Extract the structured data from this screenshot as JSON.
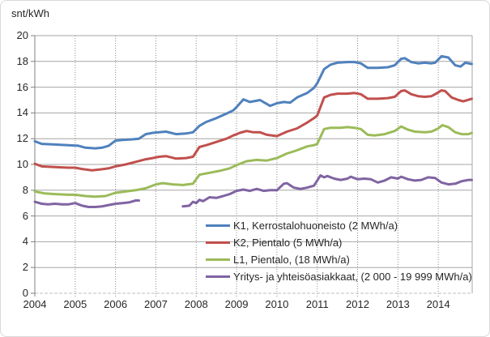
{
  "page": {
    "background": "#ffffff",
    "frame_border_color": "#d9d9d9"
  },
  "chart_data": {
    "type": "line",
    "title": "",
    "unit_label": "snt/kWh",
    "legend_position": "inside-bottom-right",
    "grid": "horizontal-solid, vertical-dotted",
    "colors": {
      "grid_h": "#a6a6a6",
      "grid_v": "#8c8c8c",
      "axis": "#808080",
      "zero_line": "#bfbfbf",
      "text": "#262626"
    },
    "x_axis": {
      "min": 2004,
      "max": 2014.84,
      "tick_years": [
        2004,
        2005,
        2006,
        2007,
        2008,
        2009,
        2010,
        2011,
        2012,
        2013,
        2014
      ],
      "tick_labels": [
        "2004",
        "2005",
        "2006",
        "2007",
        "2008",
        "2009",
        "2010",
        "2011",
        "2012",
        "2013",
        "2014"
      ]
    },
    "y_axis": {
      "min": 0,
      "max": 20,
      "tick_step": 2,
      "tick_labels": [
        "0",
        "2",
        "4",
        "6",
        "8",
        "10",
        "12",
        "14",
        "16",
        "18",
        "20"
      ]
    },
    "series": [
      {
        "id": "k1",
        "label": "K1, Kerrostalohuoneisto (2 MWh/a)",
        "color": "#4F81BD",
        "segments": [
          [
            [
              2004.0,
              11.8
            ],
            [
              2004.17,
              11.6
            ],
            [
              2004.5,
              11.55
            ],
            [
              2004.83,
              11.5
            ],
            [
              2005.08,
              11.45
            ],
            [
              2005.25,
              11.3
            ],
            [
              2005.5,
              11.25
            ],
            [
              2005.67,
              11.3
            ],
            [
              2005.83,
              11.45
            ],
            [
              2006.0,
              11.85
            ],
            [
              2006.17,
              11.9
            ],
            [
              2006.42,
              11.95
            ],
            [
              2006.58,
              12.0
            ],
            [
              2006.75,
              12.35
            ],
            [
              2006.92,
              12.45
            ],
            [
              2007.08,
              12.5
            ],
            [
              2007.25,
              12.55
            ],
            [
              2007.5,
              12.35
            ],
            [
              2007.75,
              12.4
            ],
            [
              2007.92,
              12.5
            ],
            [
              2008.08,
              13.0
            ],
            [
              2008.25,
              13.3
            ],
            [
              2008.5,
              13.6
            ],
            [
              2008.75,
              13.95
            ],
            [
              2008.92,
              14.2
            ],
            [
              2009.0,
              14.45
            ],
            [
              2009.17,
              15.05
            ],
            [
              2009.33,
              14.85
            ],
            [
              2009.58,
              15.0
            ],
            [
              2009.75,
              14.7
            ],
            [
              2009.83,
              14.55
            ],
            [
              2010.0,
              14.75
            ],
            [
              2010.17,
              14.85
            ],
            [
              2010.33,
              14.8
            ],
            [
              2010.5,
              15.2
            ],
            [
              2010.75,
              15.55
            ],
            [
              2010.92,
              15.95
            ],
            [
              2011.0,
              16.3
            ],
            [
              2011.17,
              17.4
            ],
            [
              2011.33,
              17.75
            ],
            [
              2011.5,
              17.9
            ],
            [
              2011.75,
              17.95
            ],
            [
              2011.92,
              17.95
            ],
            [
              2012.08,
              17.85
            ],
            [
              2012.25,
              17.5
            ],
            [
              2012.5,
              17.5
            ],
            [
              2012.75,
              17.55
            ],
            [
              2012.92,
              17.7
            ],
            [
              2013.08,
              18.2
            ],
            [
              2013.17,
              18.25
            ],
            [
              2013.33,
              17.95
            ],
            [
              2013.5,
              17.85
            ],
            [
              2013.67,
              17.9
            ],
            [
              2013.83,
              17.85
            ],
            [
              2013.92,
              17.9
            ],
            [
              2014.08,
              18.4
            ],
            [
              2014.25,
              18.3
            ],
            [
              2014.42,
              17.7
            ],
            [
              2014.55,
              17.6
            ],
            [
              2014.67,
              17.9
            ],
            [
              2014.83,
              17.8
            ]
          ]
        ]
      },
      {
        "id": "k2",
        "label": "K2, Pientalo (5 MWh/a)",
        "color": "#C0504D",
        "segments": [
          [
            [
              2004.0,
              10.05
            ],
            [
              2004.17,
              9.85
            ],
            [
              2004.5,
              9.8
            ],
            [
              2004.83,
              9.75
            ],
            [
              2005.0,
              9.75
            ],
            [
              2005.17,
              9.65
            ],
            [
              2005.42,
              9.55
            ],
            [
              2005.58,
              9.6
            ],
            [
              2005.83,
              9.7
            ],
            [
              2006.0,
              9.85
            ],
            [
              2006.25,
              10.0
            ],
            [
              2006.5,
              10.2
            ],
            [
              2006.75,
              10.4
            ],
            [
              2006.92,
              10.5
            ],
            [
              2007.08,
              10.6
            ],
            [
              2007.25,
              10.65
            ],
            [
              2007.5,
              10.45
            ],
            [
              2007.75,
              10.5
            ],
            [
              2007.92,
              10.6
            ],
            [
              2008.08,
              11.35
            ],
            [
              2008.25,
              11.5
            ],
            [
              2008.5,
              11.75
            ],
            [
              2008.75,
              12.0
            ],
            [
              2008.92,
              12.25
            ],
            [
              2009.08,
              12.45
            ],
            [
              2009.25,
              12.6
            ],
            [
              2009.42,
              12.5
            ],
            [
              2009.58,
              12.5
            ],
            [
              2009.75,
              12.3
            ],
            [
              2010.0,
              12.2
            ],
            [
              2010.25,
              12.55
            ],
            [
              2010.5,
              12.8
            ],
            [
              2010.75,
              13.25
            ],
            [
              2010.92,
              13.6
            ],
            [
              2011.0,
              13.8
            ],
            [
              2011.17,
              15.2
            ],
            [
              2011.33,
              15.4
            ],
            [
              2011.5,
              15.5
            ],
            [
              2011.75,
              15.5
            ],
            [
              2011.92,
              15.55
            ],
            [
              2012.08,
              15.45
            ],
            [
              2012.25,
              15.1
            ],
            [
              2012.5,
              15.1
            ],
            [
              2012.75,
              15.15
            ],
            [
              2012.92,
              15.25
            ],
            [
              2013.08,
              15.7
            ],
            [
              2013.17,
              15.75
            ],
            [
              2013.33,
              15.45
            ],
            [
              2013.5,
              15.3
            ],
            [
              2013.67,
              15.25
            ],
            [
              2013.83,
              15.3
            ],
            [
              2013.92,
              15.45
            ],
            [
              2014.08,
              15.75
            ],
            [
              2014.17,
              15.7
            ],
            [
              2014.33,
              15.2
            ],
            [
              2014.5,
              15.0
            ],
            [
              2014.62,
              14.9
            ],
            [
              2014.83,
              15.1
            ]
          ]
        ]
      },
      {
        "id": "l1",
        "label": "L1, Pientalo, (18 MWh/a)",
        "color": "#9BBB59",
        "segments": [
          [
            [
              2004.0,
              7.9
            ],
            [
              2004.25,
              7.75
            ],
            [
              2004.5,
              7.7
            ],
            [
              2004.83,
              7.65
            ],
            [
              2005.0,
              7.65
            ],
            [
              2005.25,
              7.55
            ],
            [
              2005.5,
              7.5
            ],
            [
              2005.75,
              7.55
            ],
            [
              2006.0,
              7.8
            ],
            [
              2006.25,
              7.9
            ],
            [
              2006.5,
              8.0
            ],
            [
              2006.75,
              8.15
            ],
            [
              2007.0,
              8.45
            ],
            [
              2007.17,
              8.55
            ],
            [
              2007.42,
              8.45
            ],
            [
              2007.67,
              8.4
            ],
            [
              2007.92,
              8.5
            ],
            [
              2008.08,
              9.2
            ],
            [
              2008.33,
              9.35
            ],
            [
              2008.58,
              9.5
            ],
            [
              2008.83,
              9.7
            ],
            [
              2009.0,
              9.95
            ],
            [
              2009.25,
              10.25
            ],
            [
              2009.5,
              10.35
            ],
            [
              2009.75,
              10.3
            ],
            [
              2010.0,
              10.5
            ],
            [
              2010.25,
              10.85
            ],
            [
              2010.5,
              11.1
            ],
            [
              2010.75,
              11.4
            ],
            [
              2010.92,
              11.5
            ],
            [
              2011.0,
              11.6
            ],
            [
              2011.17,
              12.75
            ],
            [
              2011.33,
              12.85
            ],
            [
              2011.58,
              12.85
            ],
            [
              2011.75,
              12.9
            ],
            [
              2011.92,
              12.85
            ],
            [
              2012.08,
              12.75
            ],
            [
              2012.25,
              12.3
            ],
            [
              2012.42,
              12.25
            ],
            [
              2012.67,
              12.35
            ],
            [
              2012.92,
              12.6
            ],
            [
              2013.08,
              12.95
            ],
            [
              2013.25,
              12.7
            ],
            [
              2013.42,
              12.55
            ],
            [
              2013.67,
              12.5
            ],
            [
              2013.83,
              12.55
            ],
            [
              2014.0,
              12.8
            ],
            [
              2014.1,
              13.05
            ],
            [
              2014.25,
              12.9
            ],
            [
              2014.42,
              12.5
            ],
            [
              2014.58,
              12.35
            ],
            [
              2014.75,
              12.35
            ],
            [
              2014.83,
              12.45
            ]
          ]
        ]
      },
      {
        "id": "yritys",
        "label": "Yritys- ja yhteisöasiakkaat, (2 000 - 19 999 MWh/a)",
        "color": "#8064A2",
        "segments": [
          [
            [
              2004.0,
              7.1
            ],
            [
              2004.17,
              6.95
            ],
            [
              2004.33,
              6.9
            ],
            [
              2004.5,
              6.95
            ],
            [
              2004.67,
              6.9
            ],
            [
              2004.83,
              6.9
            ],
            [
              2005.0,
              7.0
            ],
            [
              2005.17,
              6.8
            ],
            [
              2005.33,
              6.7
            ],
            [
              2005.5,
              6.7
            ],
            [
              2005.67,
              6.75
            ],
            [
              2005.83,
              6.85
            ],
            [
              2006.0,
              6.95
            ],
            [
              2006.17,
              7.0
            ],
            [
              2006.33,
              7.05
            ],
            [
              2006.5,
              7.2
            ],
            [
              2006.58,
              7.2
            ]
          ],
          [
            [
              2007.67,
              6.75
            ],
            [
              2007.83,
              6.8
            ],
            [
              2007.92,
              7.1
            ],
            [
              2008.0,
              7.0
            ],
            [
              2008.08,
              7.25
            ],
            [
              2008.17,
              7.15
            ],
            [
              2008.33,
              7.45
            ],
            [
              2008.5,
              7.4
            ],
            [
              2008.67,
              7.55
            ],
            [
              2008.83,
              7.7
            ],
            [
              2009.0,
              7.95
            ],
            [
              2009.17,
              8.05
            ],
            [
              2009.33,
              7.95
            ],
            [
              2009.5,
              8.1
            ],
            [
              2009.67,
              7.95
            ],
            [
              2009.83,
              8.0
            ],
            [
              2010.0,
              8.0
            ],
            [
              2010.17,
              8.5
            ],
            [
              2010.25,
              8.55
            ],
            [
              2010.42,
              8.2
            ],
            [
              2010.58,
              8.1
            ],
            [
              2010.75,
              8.2
            ],
            [
              2010.92,
              8.35
            ],
            [
              2011.08,
              9.15
            ],
            [
              2011.17,
              9.0
            ],
            [
              2011.25,
              9.1
            ],
            [
              2011.42,
              8.9
            ],
            [
              2011.58,
              8.8
            ],
            [
              2011.75,
              8.9
            ],
            [
              2011.83,
              9.05
            ],
            [
              2012.0,
              8.85
            ],
            [
              2012.17,
              8.9
            ],
            [
              2012.33,
              8.85
            ],
            [
              2012.5,
              8.6
            ],
            [
              2012.67,
              8.75
            ],
            [
              2012.83,
              9.0
            ],
            [
              2013.0,
              8.9
            ],
            [
              2013.08,
              9.05
            ],
            [
              2013.25,
              8.85
            ],
            [
              2013.42,
              8.75
            ],
            [
              2013.58,
              8.8
            ],
            [
              2013.75,
              9.0
            ],
            [
              2013.92,
              8.95
            ],
            [
              2014.08,
              8.6
            ],
            [
              2014.25,
              8.45
            ],
            [
              2014.42,
              8.5
            ],
            [
              2014.58,
              8.7
            ],
            [
              2014.75,
              8.8
            ],
            [
              2014.83,
              8.8
            ]
          ]
        ]
      }
    ]
  }
}
